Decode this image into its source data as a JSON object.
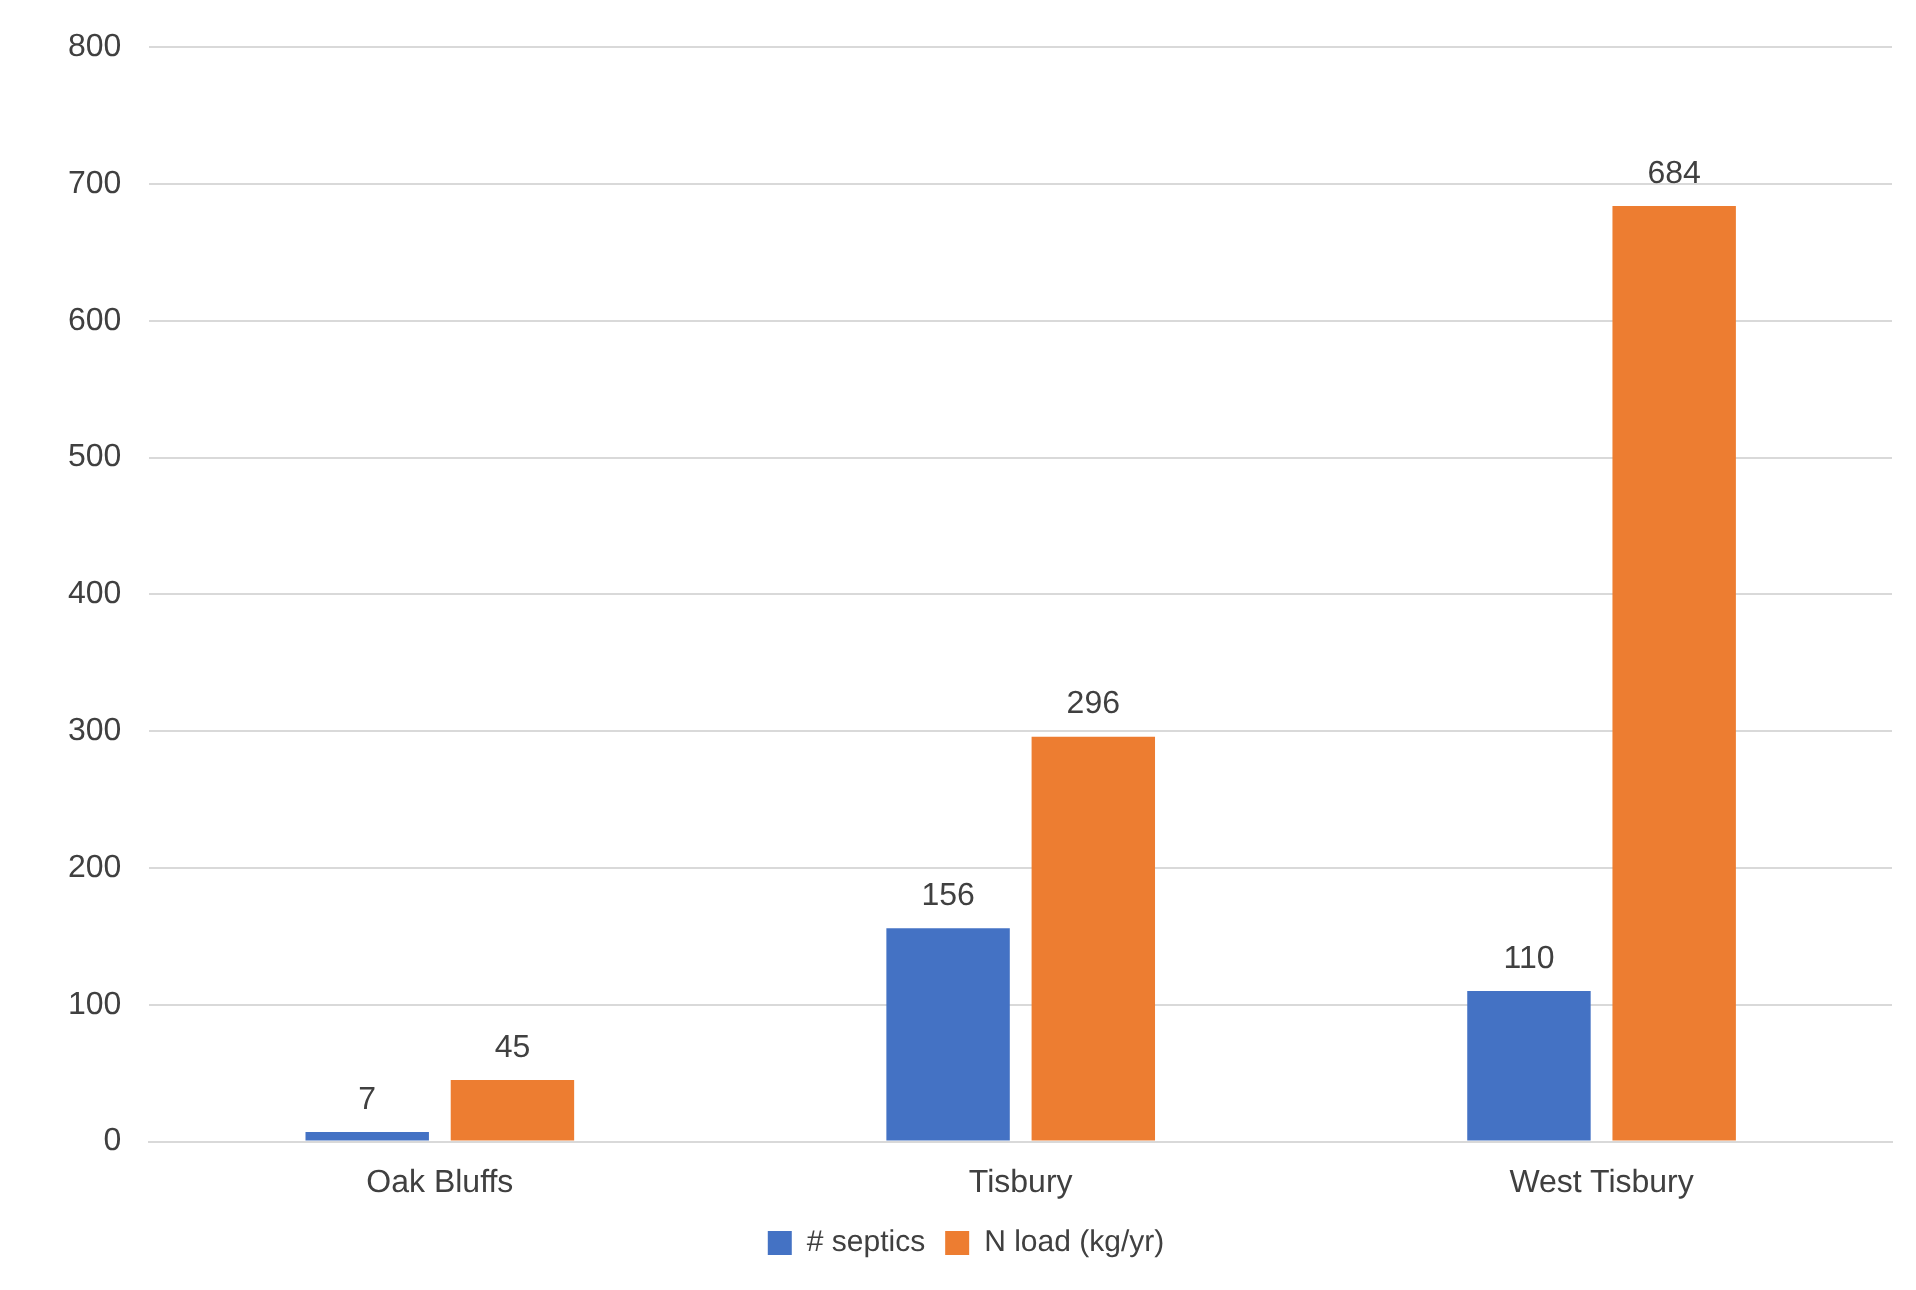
{
  "chart_data": {
    "type": "bar",
    "categories": [
      "Oak Bluffs",
      "Tisbury",
      "West Tisbury"
    ],
    "series": [
      {
        "name": "# septics",
        "color": "#4472c4",
        "values": [
          7,
          156,
          110
        ]
      },
      {
        "name": "N load (kg/yr)",
        "color": "#ed7d31",
        "values": [
          45,
          296,
          684
        ]
      }
    ],
    "ylim": [
      0,
      800
    ],
    "yticks": [
      0,
      100,
      200,
      300,
      400,
      500,
      600,
      700,
      800
    ],
    "grid": "y",
    "legend": "bottom",
    "data_labels": true
  }
}
